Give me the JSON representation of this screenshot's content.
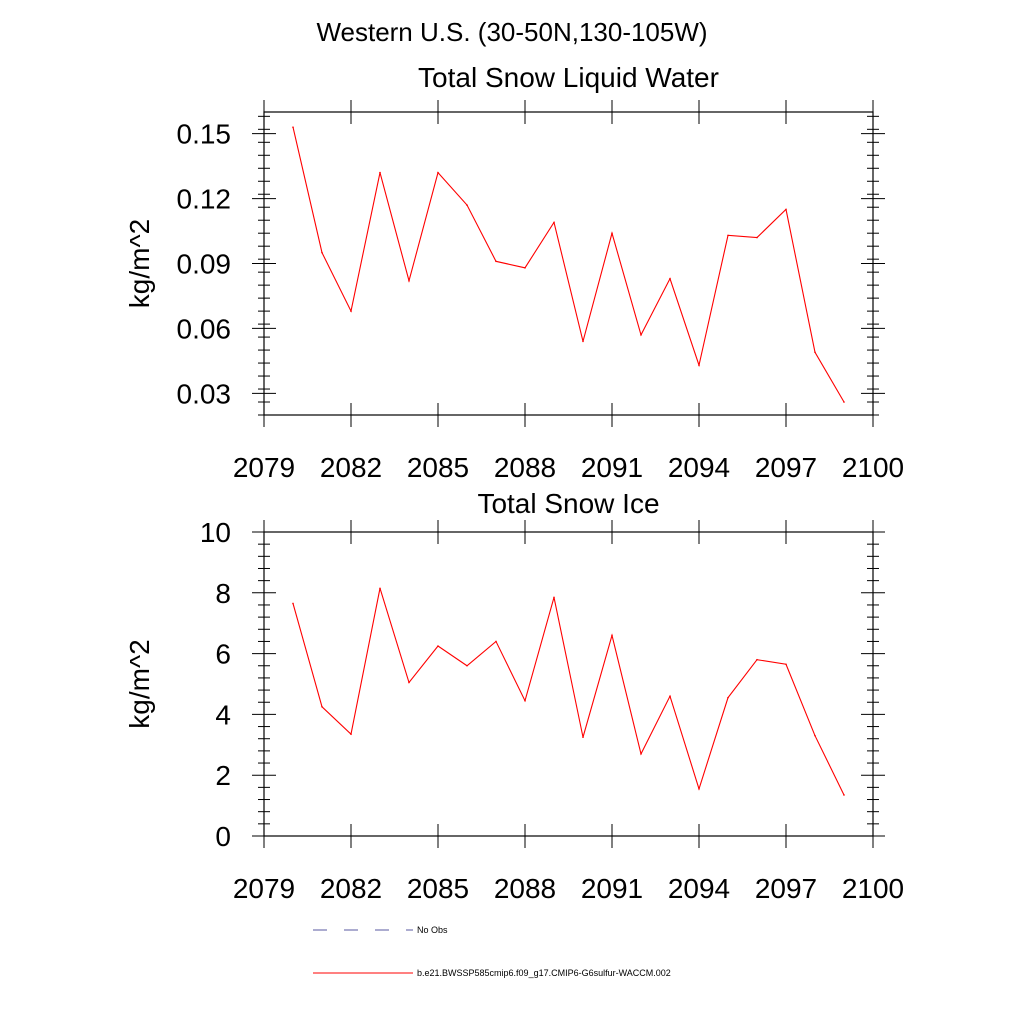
{
  "figure": {
    "main_title": "Western U.S. (30-50N,130-105W)"
  },
  "chart_data": [
    {
      "type": "line",
      "title": "Total Snow Liquid Water",
      "xlabel": "",
      "ylabel": "kg/m^2",
      "xlim": [
        2079,
        2100
      ],
      "ylim": [
        0.02,
        0.16
      ],
      "xticks": [
        2079,
        2082,
        2085,
        2088,
        2091,
        2094,
        2097,
        2100
      ],
      "yticks": [
        0.03,
        0.06,
        0.09,
        0.12,
        0.15
      ],
      "ytick_labels": [
        "0.03",
        "0.06",
        "0.09",
        "0.12",
        "0.15"
      ],
      "x": [
        2080,
        2081,
        2082,
        2083,
        2084,
        2085,
        2086,
        2087,
        2088,
        2089,
        2090,
        2091,
        2092,
        2093,
        2094,
        2095,
        2096,
        2097,
        2098,
        2099
      ],
      "series": [
        {
          "name": "b.e21.BWSSP585cmip6.f09_g17.CMIP6-G6sulfur-WACCM.002",
          "color": "#ff0000",
          "values": [
            0.153,
            0.095,
            0.068,
            0.132,
            0.082,
            0.132,
            0.117,
            0.091,
            0.088,
            0.109,
            0.054,
            0.104,
            0.057,
            0.083,
            0.043,
            0.103,
            0.102,
            0.115,
            0.049,
            0.026
          ]
        }
      ],
      "grid": false
    },
    {
      "type": "line",
      "title": "Total Snow Ice",
      "xlabel": "",
      "ylabel": "kg/m^2",
      "xlim": [
        2079,
        2100
      ],
      "ylim": [
        0,
        10
      ],
      "xticks": [
        2079,
        2082,
        2085,
        2088,
        2091,
        2094,
        2097,
        2100
      ],
      "yticks": [
        0,
        2,
        4,
        6,
        8,
        10
      ],
      "ytick_labels": [
        "0",
        "2",
        "4",
        "6",
        "8",
        "10"
      ],
      "x": [
        2080,
        2081,
        2082,
        2083,
        2084,
        2085,
        2086,
        2087,
        2088,
        2089,
        2090,
        2091,
        2092,
        2093,
        2094,
        2095,
        2096,
        2097,
        2098,
        2099
      ],
      "series": [
        {
          "name": "b.e21.BWSSP585cmip6.f09_g17.CMIP6-G6sulfur-WACCM.002",
          "color": "#ff0000",
          "values": [
            7.65,
            4.25,
            3.35,
            8.15,
            5.05,
            6.25,
            5.6,
            6.4,
            4.45,
            7.85,
            3.25,
            6.6,
            2.7,
            4.6,
            1.55,
            4.55,
            5.8,
            5.65,
            3.3,
            1.35
          ]
        }
      ],
      "grid": false
    }
  ],
  "legend": {
    "placement": "bottom",
    "items": [
      {
        "label": "No Obs",
        "color": "#5a5aa0",
        "style": "dashed"
      },
      {
        "label": "b.e21.BWSSP585cmip6.f09_g17.CMIP6-G6sulfur-WACCM.002",
        "color": "#ff0000",
        "style": "solid"
      }
    ]
  }
}
